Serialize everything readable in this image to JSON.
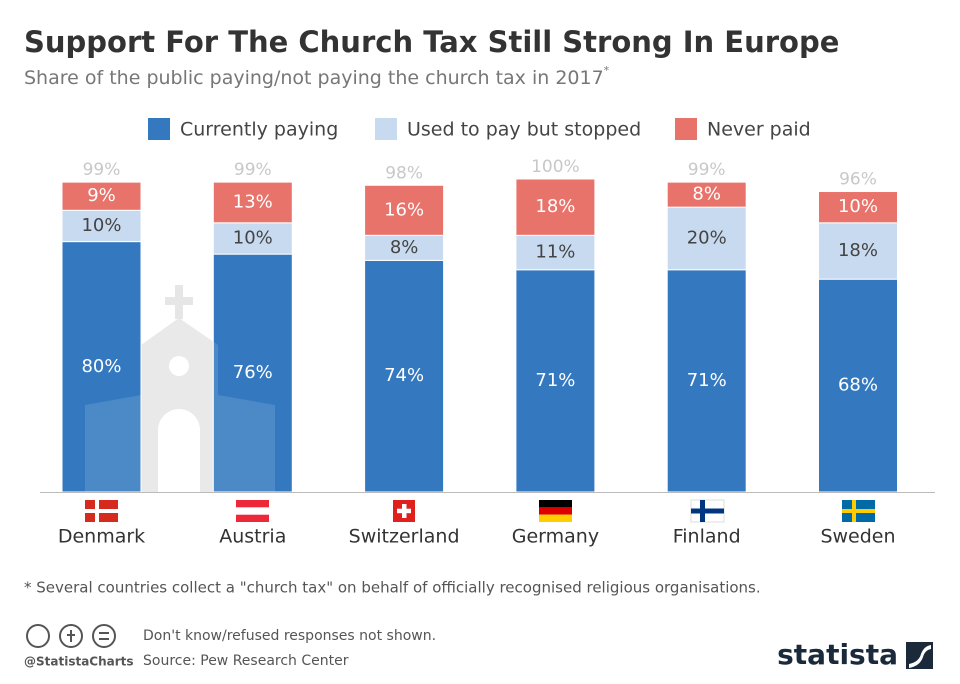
{
  "chart_data": {
    "type": "stacked_bar",
    "title": "Support For The Church Tax Still Strong In Europe",
    "subtitle": "Share of the public paying/not paying the church tax in 2017",
    "subtitle_marker": "*",
    "categories": [
      "Denmark",
      "Austria",
      "Switzerland",
      "Germany",
      "Finland",
      "Sweden"
    ],
    "series": [
      {
        "name": "Currently paying",
        "color": "#3479c0",
        "values": [
          80,
          76,
          74,
          71,
          71,
          68
        ],
        "value_labels": [
          "80%",
          "76%",
          "74%",
          "71%",
          "71%",
          "68%"
        ]
      },
      {
        "name": "Used to pay but stopped",
        "color": "#c8daf0",
        "values": [
          10,
          10,
          8,
          11,
          20,
          18
        ],
        "value_labels": [
          "10%",
          "10%",
          "8%",
          "11%",
          "20%",
          "18%"
        ]
      },
      {
        "name": "Never paid",
        "color": "#e8736a",
        "values": [
          9,
          13,
          16,
          18,
          8,
          10
        ],
        "value_labels": [
          "9%",
          "13%",
          "16%",
          "18%",
          "8%",
          "10%"
        ]
      }
    ],
    "totals": {
      "values": [
        99,
        99,
        98,
        100,
        99,
        96
      ],
      "value_labels": [
        "99%",
        "99%",
        "98%",
        "100%",
        "99%",
        "96%"
      ]
    },
    "footnote": "* Several countries collect a \"church tax\" on behalf of officially recognised religious organisations.",
    "notes": [
      "Don't know/refused responses not shown.",
      "Source: Pew Research Center"
    ],
    "handle": "@StatistaCharts",
    "brand": "statista"
  }
}
